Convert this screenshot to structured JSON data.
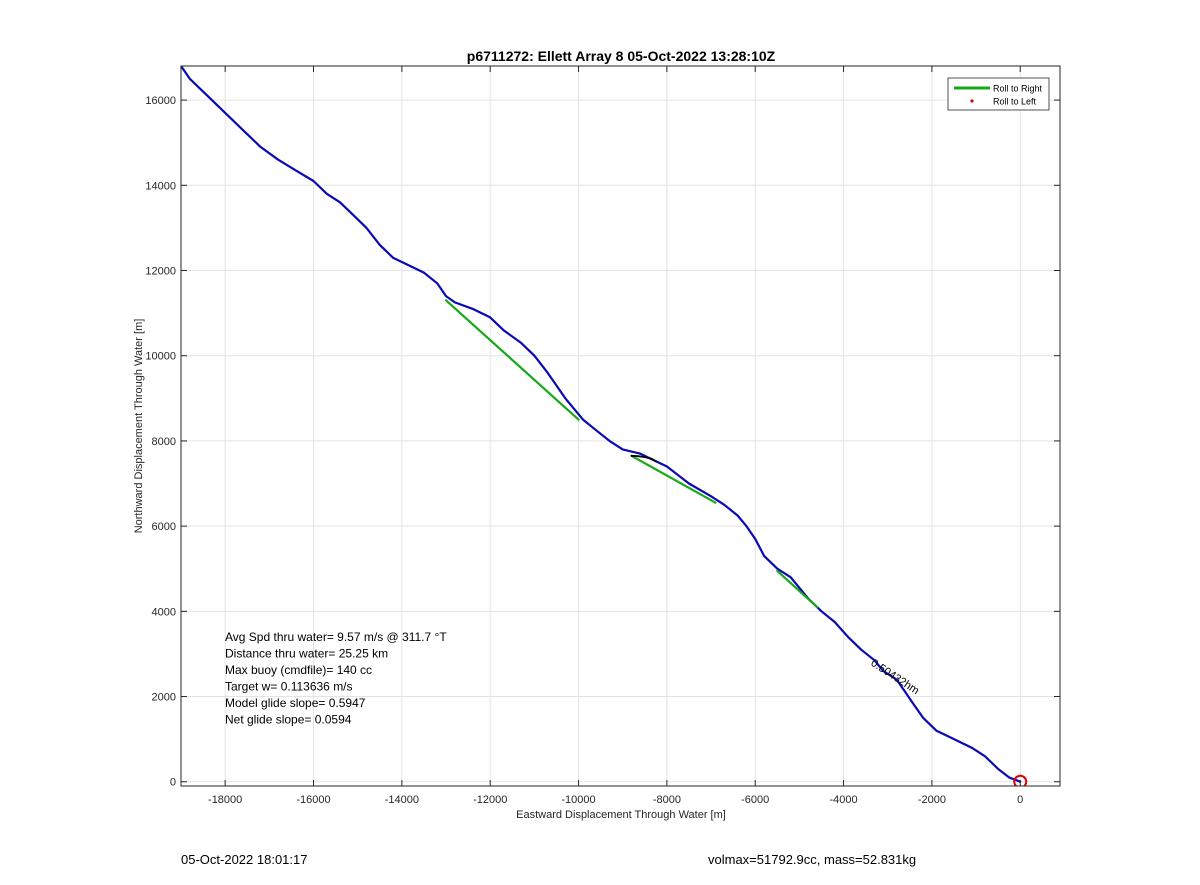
{
  "footer": {
    "left_text": "05-Oct-2022 18:01:17",
    "right_text": "volmax=51792.9cc, mass=52.831kg"
  },
  "stats": {
    "lines": [
      "Avg Spd thru water=  9.57 m/s @ 311.7 °T",
      "Distance thru water= 25.25 km",
      "Max buoy (cmdfile)= 140 cc",
      "Target w= 0.113636 m/s",
      "Model glide slope= 0.5947",
      "Net glide slope= 0.0594"
    ]
  },
  "annotations": [
    {
      "text": "0.50432hm",
      "x": -3400,
      "y": 2750,
      "rotation_deg": 33
    }
  ],
  "chart_data": {
    "type": "line",
    "title": "p6711272: Ellett Array 8 05-Oct-2022 13:28:10Z",
    "xlabel": "Eastward Displacement Through Water [m]",
    "ylabel": "Northward Displacement Through Water [m]",
    "xlim": [
      -19000,
      900
    ],
    "ylim": [
      -100,
      16800
    ],
    "xticks": [
      -18000,
      -16000,
      -14000,
      -12000,
      -10000,
      -8000,
      -6000,
      -4000,
      -2000,
      0
    ],
    "yticks": [
      0,
      2000,
      4000,
      6000,
      8000,
      10000,
      12000,
      14000,
      16000
    ],
    "xtick_labels": [
      "-18000",
      "-16000",
      "-14000",
      "-12000",
      "-10000",
      "-8000",
      "-6000",
      "-4000",
      "-2000",
      "0"
    ],
    "ytick_labels": [
      "0",
      "2000",
      "4000",
      "6000",
      "8000",
      "10000",
      "12000",
      "14000",
      "16000"
    ],
    "grid": true,
    "legend_position": "top-right",
    "legend": [
      {
        "label": "Roll to Right",
        "color": "#18a818",
        "style": "line"
      },
      {
        "label": "Roll to Left",
        "color": "#e00000",
        "style": "dot"
      }
    ],
    "colors": {
      "track": "#0a0ab4",
      "roll_right": "#18a818",
      "roll_left": "#e00000",
      "black_segment": "#000000",
      "origin_marker": "#e00000"
    },
    "series": [
      {
        "name": "",
        "color": "#0a0ab4",
        "x": [
          0,
          -250,
          -500,
          -800,
          -1100,
          -1500,
          -1900,
          -2200,
          -2400,
          -2600,
          -2800,
          -3100,
          -3300,
          -3600,
          -3900,
          -4200,
          -4500,
          -4800,
          -5200,
          -5500,
          -5800,
          -6000,
          -6200,
          -6400,
          -6700,
          -7000,
          -7500,
          -8000,
          -8400,
          -8600,
          -9000,
          -9300,
          -9600,
          -9900,
          -10300,
          -10700,
          -11000,
          -11300,
          -11700,
          -12000,
          -12400,
          -12800,
          -13000,
          -13200,
          -13500,
          -13800,
          -14200,
          -14500,
          -14800,
          -15100,
          -15400,
          -15700,
          -16000,
          -16400,
          -16800,
          -17200,
          -17600,
          -18000,
          -18400,
          -18800,
          -19000
        ],
        "y": [
          0,
          100,
          300,
          600,
          800,
          1000,
          1200,
          1500,
          1800,
          2100,
          2400,
          2600,
          2850,
          3100,
          3400,
          3750,
          4000,
          4300,
          4800,
          5000,
          5300,
          5700,
          6000,
          6250,
          6500,
          6700,
          7000,
          7400,
          7600,
          7700,
          7800,
          8000,
          8250,
          8500,
          9000,
          9600,
          10000,
          10300,
          10600,
          10900,
          11100,
          11250,
          11400,
          11700,
          11950,
          12100,
          12300,
          12600,
          13000,
          13300,
          13600,
          13800,
          14100,
          14350,
          14600,
          14900,
          15300,
          15700,
          16100,
          16500,
          16800
        ]
      },
      {
        "name": "",
        "color": "#18a818",
        "x": [
          -13000,
          -10000
        ],
        "y": [
          11300,
          8500
        ]
      },
      {
        "name": "",
        "color": "#18a818",
        "x": [
          -8800,
          -6900
        ],
        "y": [
          7650,
          6550
        ]
      },
      {
        "name": "",
        "color": "#18a818",
        "x": [
          -5500,
          -4600
        ],
        "y": [
          4950,
          4100
        ]
      },
      {
        "name": "",
        "color": "#000000",
        "x": [
          -8800,
          -8650,
          -8500,
          -8350,
          -8250
        ],
        "y": [
          7650,
          7640,
          7620,
          7580,
          7520
        ]
      }
    ],
    "markers": [
      {
        "x": 0,
        "y": 0,
        "shape": "circle",
        "color": "#e00000"
      }
    ]
  }
}
